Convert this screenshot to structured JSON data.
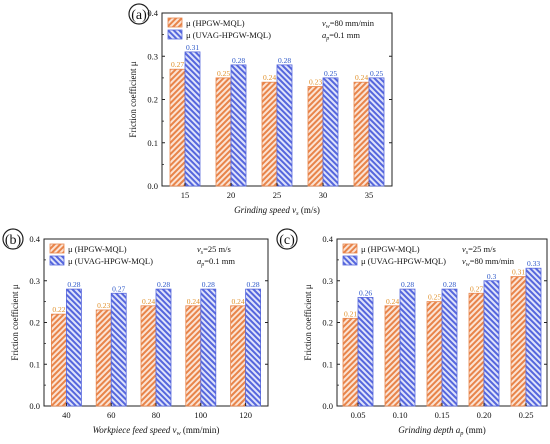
{
  "colors": {
    "hpgw": "#e8844a",
    "uvag": "#5566dd",
    "hpgw_label": "#e0902a",
    "uvag_label": "#2b56c8"
  },
  "chart_data": [
    {
      "panel": "(a)",
      "type": "bar",
      "categories": [
        "15",
        "20",
        "25",
        "30",
        "35"
      ],
      "series": [
        {
          "name": "μ (HPGW-MQL)",
          "values": [
            0.27,
            0.25,
            0.24,
            0.23,
            0.24
          ],
          "labels": [
            "0.27",
            "0.25",
            "0.24",
            "0.23",
            "0.24"
          ]
        },
        {
          "name": "μ (UVAG-HPGW-MQL)",
          "values": [
            0.31,
            0.28,
            0.28,
            0.25,
            0.25
          ],
          "labels": [
            "0.31",
            "0.28",
            "0.28",
            "0.25",
            "0.25"
          ]
        }
      ],
      "xlabel": {
        "main": "Grinding speed v",
        "sub": "s",
        "tail": " (m/s)"
      },
      "ylabel": "Friction coefficient μ",
      "ylim": [
        0,
        0.4
      ],
      "yticks": [
        "0.0",
        "0.1",
        "0.2",
        "0.3",
        "0.4"
      ],
      "conditions": [
        {
          "main": "v",
          "sub": "w",
          "tail": "=80 mm/min"
        },
        {
          "main": "a",
          "sub": "p",
          "tail": "=0.1 mm"
        }
      ]
    },
    {
      "panel": "(b)",
      "type": "bar",
      "categories": [
        "40",
        "60",
        "80",
        "100",
        "120"
      ],
      "series": [
        {
          "name": "μ (HPGW-MQL)",
          "values": [
            0.22,
            0.23,
            0.24,
            0.24,
            0.24
          ],
          "labels": [
            "0.22",
            "0.23",
            "0.24",
            "0.24",
            "0.24"
          ]
        },
        {
          "name": "μ (UVAG-HPGW-MQL)",
          "values": [
            0.28,
            0.27,
            0.28,
            0.28,
            0.28
          ],
          "labels": [
            "0.28",
            "0.27",
            "0.28",
            "0.28",
            "0.28"
          ]
        }
      ],
      "xlabel": {
        "main": "Workpiece feed speed v",
        "sub": "w",
        "tail": " (mm/min)"
      },
      "ylabel": "Friction coefficient μ",
      "ylim": [
        0,
        0.4
      ],
      "yticks": [
        "0.0",
        "0.1",
        "0.2",
        "0.3",
        "0.4"
      ],
      "conditions": [
        {
          "main": "v",
          "sub": "s",
          "tail": "=25 m/s"
        },
        {
          "main": "a",
          "sub": "p",
          "tail": "=0.1 mm"
        }
      ]
    },
    {
      "panel": "(c)",
      "type": "bar",
      "categories": [
        "0.05",
        "0.10",
        "0.15",
        "0.20",
        "0.25"
      ],
      "series": [
        {
          "name": "μ (HPGW-MQL)",
          "values": [
            0.21,
            0.24,
            0.25,
            0.27,
            0.31
          ],
          "labels": [
            "0.21",
            "0.24",
            "0.25",
            "0.27",
            "0.31"
          ]
        },
        {
          "name": "μ (UVAG-HPGW-MQL)",
          "values": [
            0.26,
            0.28,
            0.28,
            0.3,
            0.33
          ],
          "labels": [
            "0.26",
            "0.28",
            "0.28",
            "0.3",
            "0.33"
          ]
        }
      ],
      "xlabel": {
        "main": "Grinding depth a",
        "sub": "p",
        "tail": " (mm)"
      },
      "ylabel": "Friction coefficient μ",
      "ylim": [
        0,
        0.4
      ],
      "yticks": [
        "0.0",
        "0.1",
        "0.2",
        "0.3",
        "0.4"
      ],
      "conditions": [
        {
          "main": "v",
          "sub": "s",
          "tail": "=25 m/s"
        },
        {
          "main": "v",
          "sub": "w",
          "tail": "=80 mm/min"
        }
      ]
    }
  ]
}
